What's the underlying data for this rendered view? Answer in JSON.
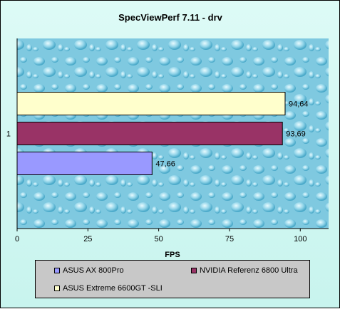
{
  "chart_data": {
    "type": "bar",
    "orientation": "horizontal",
    "title": "SpecViewPerf 7.11 - drv",
    "xlabel": "FPS",
    "ylabel": "",
    "categories": [
      "1"
    ],
    "xlim": [
      0,
      110
    ],
    "x_ticks": [
      0,
      25,
      50,
      75,
      100
    ],
    "grid": false,
    "legend_position": "bottom",
    "series": [
      {
        "name": "ASUS AX 800Pro",
        "values": [
          47.66
        ],
        "label": "47,66",
        "color": "#9999ff"
      },
      {
        "name": "NVIDIA  Referenz 6800 Ultra",
        "values": [
          93.69
        ],
        "label": "93,69",
        "color": "#993366"
      },
      {
        "name": "ASUS Extreme 6600GT -SLI",
        "values": [
          94.64
        ],
        "label": "94,64",
        "color": "#ffffcc"
      }
    ]
  }
}
